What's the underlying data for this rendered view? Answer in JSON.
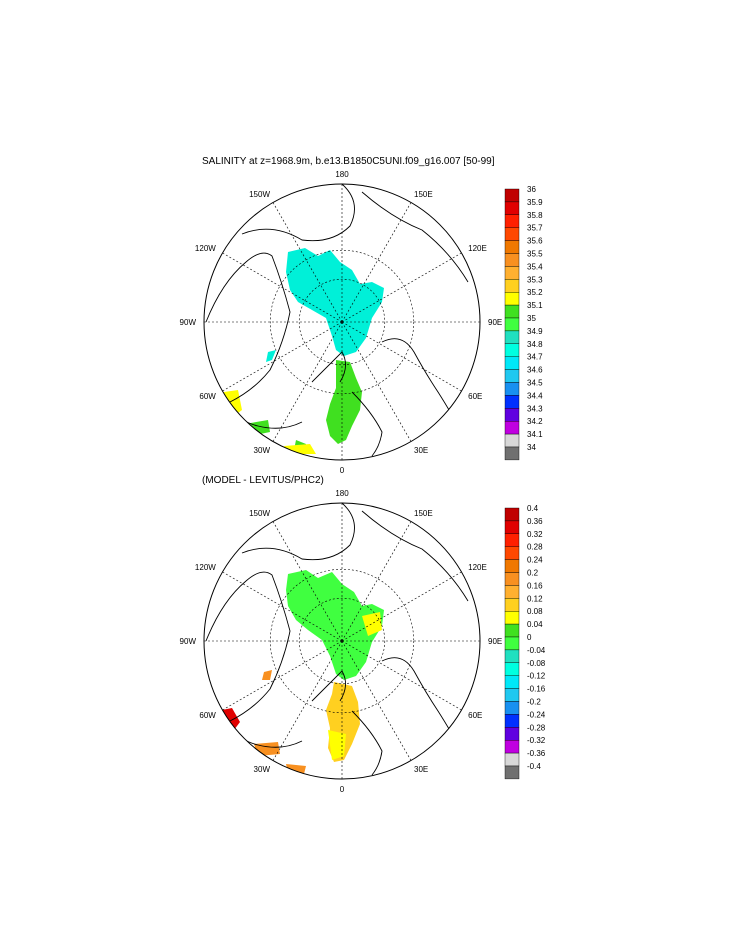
{
  "panels": [
    {
      "title": "SALINITY at z=1968.9m, b.e13.B1850C5UNI.f09_g16.007 [50-99]",
      "lon_labels": [
        "180",
        "150E",
        "120E",
        "90E",
        "60E",
        "30E",
        "0",
        "30W",
        "60W",
        "90W",
        "120W",
        "150W"
      ],
      "colorbar": {
        "labels": [
          "36",
          "35.9",
          "35.8",
          "35.7",
          "35.6",
          "35.5",
          "35.4",
          "35.3",
          "35.2",
          "35.1",
          "35",
          "34.9",
          "34.8",
          "34.7",
          "34.6",
          "34.5",
          "34.4",
          "34.3",
          "34.2",
          "34.1",
          "34"
        ],
        "colors": [
          "#c00000",
          "#e00000",
          "#ff2000",
          "#ff4800",
          "#f07800",
          "#f89020",
          "#ffb030",
          "#ffd020",
          "#ffff00",
          "#40e020",
          "#40ff40",
          "#20e0c0",
          "#00ffe0",
          "#00e8f8",
          "#20c8f0",
          "#1890f0",
          "#0030ff",
          "#6000e0",
          "#c000e0",
          "#d8d8d8",
          "#707070"
        ]
      }
    },
    {
      "title": "(MODEL - LEVITUS/PHC2)",
      "lon_labels": [
        "180",
        "150E",
        "120E",
        "90E",
        "60E",
        "30E",
        "0",
        "30W",
        "60W",
        "90W",
        "120W",
        "150W"
      ],
      "colorbar": {
        "labels": [
          "0.4",
          "0.36",
          "0.32",
          "0.28",
          "0.24",
          "0.2",
          "0.16",
          "0.12",
          "0.08",
          "0.04",
          "0",
          "-0.04",
          "-0.08",
          "-0.12",
          "-0.16",
          "-0.2",
          "-0.24",
          "-0.28",
          "-0.32",
          "-0.36",
          "-0.4"
        ],
        "colors": [
          "#c00000",
          "#e00000",
          "#ff2000",
          "#ff4800",
          "#f07800",
          "#f89020",
          "#ffb030",
          "#ffd020",
          "#ffff00",
          "#40e020",
          "#40ff40",
          "#20e0c0",
          "#00ffe0",
          "#00e8f8",
          "#20c8f0",
          "#1890f0",
          "#0030ff",
          "#6000e0",
          "#c000e0",
          "#d8d8d8",
          "#707070"
        ]
      }
    }
  ]
}
